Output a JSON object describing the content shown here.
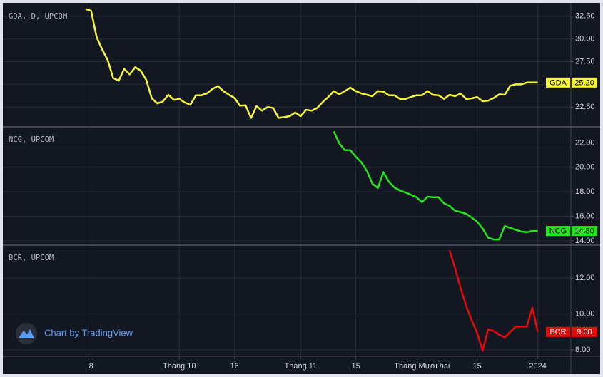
{
  "chart_data": [
    {
      "type": "line",
      "title": "GDA, D, UPCOM",
      "x": [
        -1,
        0,
        1,
        2,
        3,
        4,
        5,
        6,
        7,
        8,
        9,
        10,
        11,
        12,
        13,
        14,
        15,
        16,
        17,
        18,
        19,
        20,
        21,
        22,
        23,
        24,
        25,
        26,
        27,
        28,
        29,
        30,
        31,
        32,
        33,
        34,
        35,
        36,
        37,
        38,
        39,
        40,
        41,
        42,
        43,
        44,
        45,
        46,
        47,
        48,
        49,
        50,
        51,
        52,
        53,
        54,
        55,
        56,
        57,
        58,
        59,
        60,
        61,
        62,
        63,
        64,
        65,
        66,
        67,
        68,
        69,
        70,
        71,
        72,
        73,
        74,
        75,
        76,
        77,
        78,
        79,
        80,
        81
      ],
      "series": [
        {
          "name": "GDA",
          "color": "#f5f53a",
          "label_text_color": "#000000",
          "values": [
            33.3,
            33.1,
            30.2,
            28.85,
            27.7,
            25.7,
            25.4,
            26.7,
            26.1,
            26.9,
            26.5,
            25.5,
            23.45,
            22.9,
            23.1,
            23.85,
            23.3,
            23.4,
            23.0,
            22.75,
            23.8,
            23.8,
            24.0,
            24.5,
            24.8,
            24.25,
            23.85,
            23.5,
            22.65,
            22.7,
            21.3,
            22.6,
            22.1,
            22.5,
            22.4,
            21.3,
            21.4,
            21.5,
            21.9,
            21.5,
            22.2,
            22.1,
            22.4,
            23.05,
            23.6,
            24.25,
            23.9,
            24.25,
            24.65,
            24.25,
            24.0,
            23.85,
            23.7,
            24.25,
            24.2,
            23.8,
            23.8,
            23.4,
            23.4,
            23.6,
            23.8,
            23.8,
            24.25,
            23.85,
            23.8,
            23.4,
            23.85,
            23.7,
            24.0,
            23.4,
            23.45,
            23.6,
            23.15,
            23.2,
            23.5,
            23.9,
            23.85,
            24.85,
            25.0,
            25.0,
            25.2,
            25.2,
            25.2
          ],
          "last_label": {
            "value": 25.2,
            "label": "25.20"
          }
        }
      ],
      "ylim": [
        20.4,
        33.9
      ],
      "yticks": [
        {
          "value": 22.5,
          "label": "22.50"
        },
        {
          "value": 25,
          "label": "25.00"
        },
        {
          "value": 27.5,
          "label": "27.50"
        },
        {
          "value": 30,
          "label": "30.00"
        },
        {
          "value": 32.5,
          "label": "32.50"
        }
      ]
    },
    {
      "type": "line",
      "title": "NCG, UPCOM",
      "x": [
        44,
        45,
        46,
        47,
        48,
        49,
        50,
        51,
        52,
        53,
        54,
        55,
        56,
        57,
        58,
        59,
        60,
        61,
        62,
        63,
        64,
        65,
        66,
        67,
        68,
        69,
        70,
        71,
        72,
        73,
        74,
        75,
        76,
        77,
        78,
        79,
        80,
        81
      ],
      "series": [
        {
          "name": "NCG",
          "color": "#22e61a",
          "label_text_color": "#000000",
          "values": [
            22.93,
            21.95,
            21.4,
            21.4,
            20.85,
            20.4,
            19.7,
            18.65,
            18.3,
            19.6,
            18.8,
            18.35,
            18.1,
            17.95,
            17.75,
            17.55,
            17.15,
            17.6,
            17.55,
            17.55,
            17.05,
            16.85,
            16.45,
            16.35,
            16.2,
            15.9,
            15.55,
            15.0,
            14.25,
            14.1,
            14.1,
            15.2,
            15.05,
            14.9,
            14.75,
            14.7,
            14.8,
            14.8
          ],
          "last_label": {
            "value": 14.8,
            "label": "14.80"
          }
        }
      ],
      "ylim": [
        13.7,
        23.3
      ],
      "yticks": [
        {
          "value": 14,
          "label": "14.00"
        },
        {
          "value": 16,
          "label": "16.00"
        },
        {
          "value": 18,
          "label": "18.00"
        },
        {
          "value": 20,
          "label": "20.00"
        },
        {
          "value": 22,
          "label": "22.00"
        }
      ]
    },
    {
      "type": "line",
      "title": "BCR, UPCOM",
      "x": [
        65,
        66,
        67,
        68,
        69,
        70,
        71,
        72,
        73,
        74,
        75,
        76,
        77,
        78,
        79,
        80,
        81
      ],
      "series": [
        {
          "name": "BCR",
          "color": "#e60a0a",
          "label_text_color": "#ffffff",
          "values": [
            13.55,
            12.55,
            11.45,
            10.45,
            9.65,
            8.95,
            7.95,
            9.15,
            9.05,
            8.85,
            8.7,
            9.0,
            9.3,
            9.3,
            9.3,
            10.35,
            9.0
          ],
          "last_label": {
            "value": 9.0,
            "label": "9.00"
          }
        }
      ],
      "ylim": [
        7.64,
        13.84
      ],
      "yticks": [
        {
          "value": 8,
          "label": "8.00"
        },
        {
          "value": 10,
          "label": "10.00"
        },
        {
          "value": 12,
          "label": "12.00"
        }
      ],
      "xlim": [
        -16,
        87
      ],
      "xticks": [
        {
          "value": 0,
          "label": "8"
        },
        {
          "value": 16,
          "label": "Tháng 10"
        },
        {
          "value": 26,
          "label": "16"
        },
        {
          "value": 38,
          "label": "Tháng 11"
        },
        {
          "value": 48,
          "label": "15"
        },
        {
          "value": 60,
          "label": "Tháng Mười hai"
        },
        {
          "value": 70,
          "label": "15"
        },
        {
          "value": 81,
          "label": "2024"
        }
      ]
    }
  ],
  "watermark": "Chart by TradingView"
}
